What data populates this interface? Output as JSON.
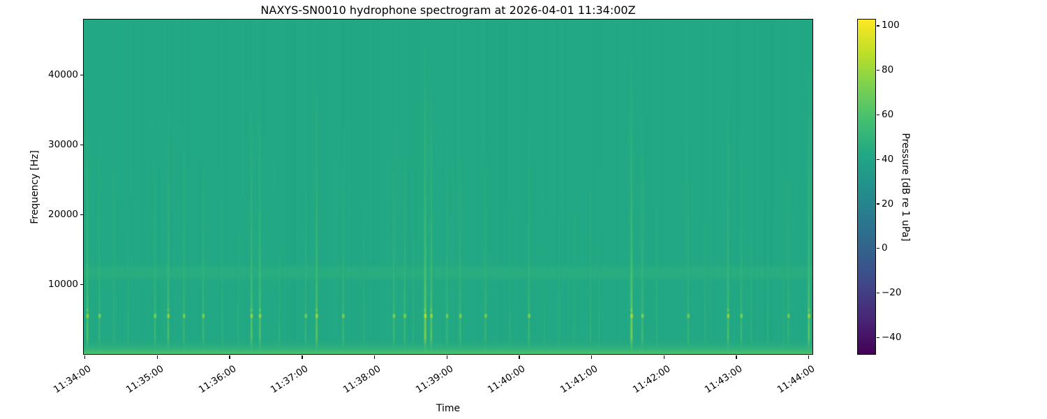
{
  "chart_data": {
    "type": "heatmap",
    "subtype": "spectrogram",
    "title": "NAXYS-SN0010 hydrophone spectrogram at 2026-04-01 11:34:00Z",
    "xlabel": "Time",
    "ylabel": "Frequency [Hz]",
    "colorbar_label": "Pressure [dB re 1 uPa]",
    "colormap": "viridis",
    "legend_position": "colorbar-right",
    "grid": false,
    "x_ticks": [
      "11:34:00",
      "11:35:00",
      "11:36:00",
      "11:37:00",
      "11:38:00",
      "11:39:00",
      "11:40:00",
      "11:41:00",
      "11:42:00",
      "11:43:00",
      "11:44:00"
    ],
    "x_tick_seconds": [
      0,
      60,
      120,
      180,
      240,
      300,
      360,
      420,
      480,
      540,
      600
    ],
    "x_range_seconds": [
      -1,
      603
    ],
    "y_ticks": [
      10000,
      20000,
      30000,
      40000
    ],
    "y_range_hz": [
      0,
      48000
    ],
    "colorbar_ticks": [
      100,
      80,
      60,
      40,
      20,
      0,
      -20,
      -40
    ],
    "colorbar_range_db": [
      -47.4,
      102.8
    ],
    "background_level_db": 43,
    "features": {
      "low_band": {
        "f_max_hz": 2400,
        "peak_db": 62.5
      },
      "tonal_band": {
        "f_lo_hz": 11000,
        "f_hi_hz": 12400,
        "level_db": 49
      },
      "click_freq_hz": 5500,
      "transients": [
        {
          "t": 2,
          "s": 0.75
        },
        {
          "t": 12,
          "s": 0.5
        },
        {
          "t": 24,
          "s": 0.35
        },
        {
          "t": 36,
          "s": 0.3
        },
        {
          "t": 58,
          "s": 0.55
        },
        {
          "t": 69,
          "s": 0.7
        },
        {
          "t": 82,
          "s": 0.5
        },
        {
          "t": 98,
          "s": 0.55
        },
        {
          "t": 114,
          "s": 0.35
        },
        {
          "t": 127,
          "s": 0.3
        },
        {
          "t": 138,
          "s": 0.8
        },
        {
          "t": 145,
          "s": 0.75
        },
        {
          "t": 161,
          "s": 0.35
        },
        {
          "t": 183,
          "s": 0.45
        },
        {
          "t": 192,
          "s": 0.8
        },
        {
          "t": 214,
          "s": 0.55
        },
        {
          "t": 231,
          "s": 0.3
        },
        {
          "t": 256,
          "s": 0.55
        },
        {
          "t": 265,
          "s": 0.55
        },
        {
          "t": 272,
          "s": 0.35
        },
        {
          "t": 282,
          "s": 1.0
        },
        {
          "t": 287,
          "s": 0.8
        },
        {
          "t": 300,
          "s": 0.5
        },
        {
          "t": 311,
          "s": 0.55
        },
        {
          "t": 332,
          "s": 0.5
        },
        {
          "t": 352,
          "s": 0.25
        },
        {
          "t": 368,
          "s": 0.55
        },
        {
          "t": 381,
          "s": 0.25
        },
        {
          "t": 393,
          "s": 0.3
        },
        {
          "t": 405,
          "s": 0.25
        },
        {
          "t": 419,
          "s": 0.35
        },
        {
          "t": 426,
          "s": 0.3
        },
        {
          "t": 453,
          "s": 1.0
        },
        {
          "t": 462,
          "s": 0.6
        },
        {
          "t": 474,
          "s": 0.35
        },
        {
          "t": 500,
          "s": 0.45
        },
        {
          "t": 514,
          "s": 0.3
        },
        {
          "t": 533,
          "s": 0.7
        },
        {
          "t": 544,
          "s": 0.55
        },
        {
          "t": 552,
          "s": 0.35
        },
        {
          "t": 566,
          "s": 0.3
        },
        {
          "t": 579,
          "s": 0.3
        },
        {
          "t": 583,
          "s": 0.45
        },
        {
          "t": 600,
          "s": 0.85
        }
      ]
    },
    "colors": {
      "figure_background": "#ffffff",
      "text": "#000000",
      "axes_edge": "#000000",
      "heatmap_background": "#22a884",
      "transient_bright": "#bddf26",
      "viridis_stops": [
        [
          0.0,
          "#440154"
        ],
        [
          0.1,
          "#482475"
        ],
        [
          0.2,
          "#414487"
        ],
        [
          0.3,
          "#355f8d"
        ],
        [
          0.4,
          "#2a788e"
        ],
        [
          0.5,
          "#21918c"
        ],
        [
          0.6,
          "#22a884"
        ],
        [
          0.7,
          "#44bf70"
        ],
        [
          0.8,
          "#7ad151"
        ],
        [
          0.9,
          "#bddf26"
        ],
        [
          1.0,
          "#fde725"
        ]
      ]
    }
  }
}
